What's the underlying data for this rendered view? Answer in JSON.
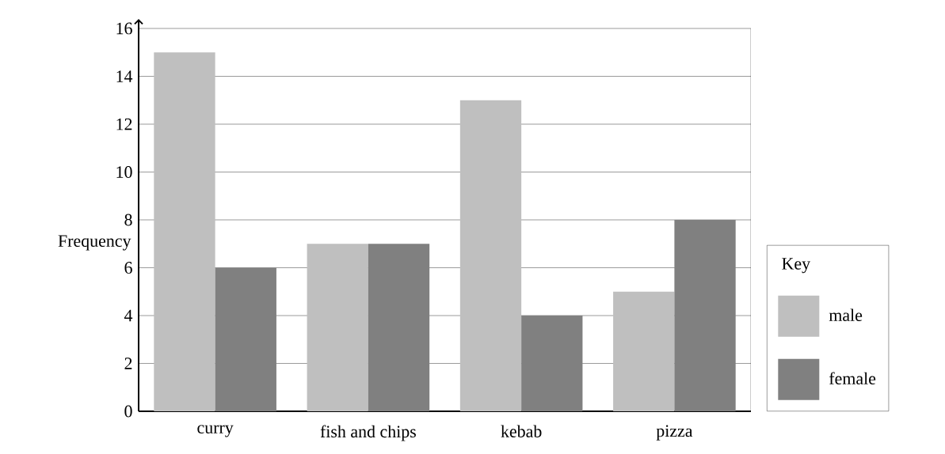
{
  "chart_data": {
    "type": "bar",
    "ylabel": "Frequency",
    "legend_title": "Key",
    "categories": [
      "curry",
      "fish and chips",
      "kebab",
      "pizza"
    ],
    "series": [
      {
        "name": "male",
        "color": "#bfbfbf",
        "values": [
          15,
          7,
          13,
          5
        ]
      },
      {
        "name": "female",
        "color": "#808080",
        "values": [
          6,
          7,
          4,
          8
        ]
      }
    ],
    "ylim": [
      0,
      16
    ],
    "yticks": [
      0,
      2,
      4,
      6,
      8,
      10,
      12,
      14,
      16
    ],
    "grid": "y",
    "legend": "right"
  }
}
